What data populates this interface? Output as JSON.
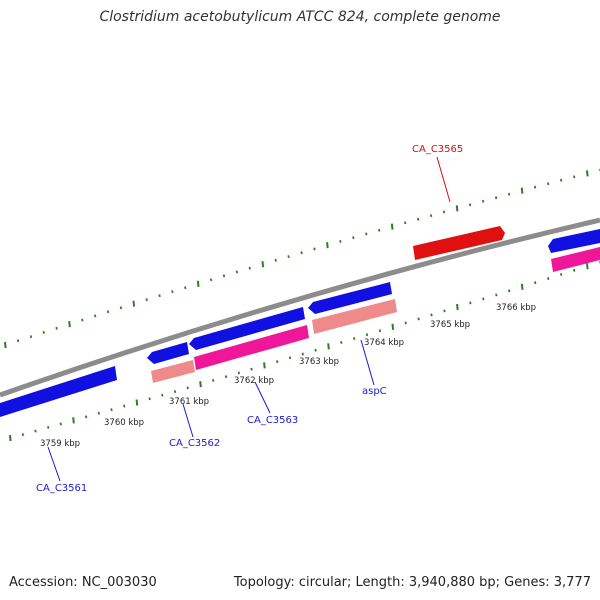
{
  "title": "Clostridium acetobutylicum ATCC 824, complete genome",
  "footer": {
    "accession": "Accession: NC_003030",
    "stats": "Topology: circular; Length: 3,940,880 bp; Genes: 3,777"
  },
  "colors": {
    "backbone": "#8c8c8c",
    "tick": "#2e7d1e",
    "gene_blue": "#1010e0",
    "gene_red": "#e01010",
    "gene_magenta": "#f0169a",
    "gene_pink": "#f08a8a",
    "label_blue": "#1a1ad0",
    "label_red": "#d01010"
  },
  "tick_labels": [
    "3759 kbp",
    "3760 kbp",
    "3761 kbp",
    "3762 kbp",
    "3763 kbp",
    "3764 kbp",
    "3765 kbp",
    "3766 kbp"
  ],
  "gene_labels": [
    "CA_C3561",
    "CA_C3562",
    "CA_C3563",
    "aspC",
    "CA_C3565"
  ]
}
